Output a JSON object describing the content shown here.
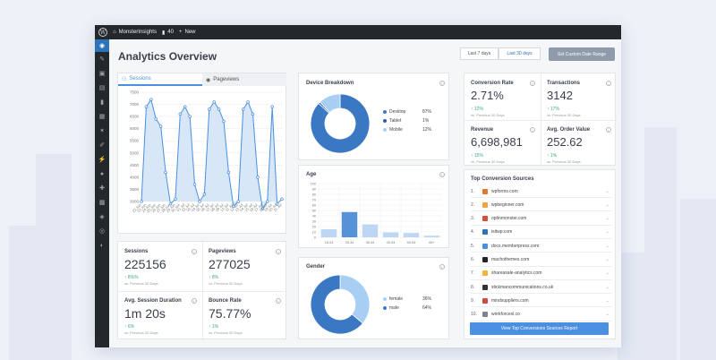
{
  "wp_bar": {
    "site_name": "MonsterInsights",
    "comments_count": "40",
    "new_label": "New"
  },
  "page": {
    "title": "Analytics Overview",
    "range_buttons": [
      "Last 7 days",
      "Last 30 days"
    ],
    "active_range": "Last 30 days",
    "custom_range_label": "Set Custom Date Range"
  },
  "traffic": {
    "tabs": [
      "Sessions",
      "Pageviews"
    ],
    "active_tab": "Sessions",
    "accent": "#4a8fe0"
  },
  "chart_data": [
    {
      "type": "area",
      "title": "",
      "categories": [
        "22 Jun",
        "23 Jun",
        "24 Jun",
        "25 Jun",
        "26 Jun",
        "27 Jun",
        "28 Jun",
        "29 Jun",
        "30 Jun",
        "01 Jul",
        "02 Jul",
        "03 Jul",
        "04 Jul",
        "05 Jul",
        "06 Jul",
        "07 Jul",
        "08 Jul",
        "09 Jul",
        "10 Jul",
        "11 Jul",
        "12 Jul",
        "13 Jul",
        "14 Jul",
        "15 Jul",
        "16 Jul",
        "17 Jul",
        "18 Jul",
        "19 Jul",
        "20 Jul",
        "21 Jul"
      ],
      "series": [
        {
          "values": [
            3000,
            6900,
            7200,
            6400,
            6100,
            4200,
            2900,
            3100,
            6600,
            6900,
            6500,
            3700,
            3000,
            3300,
            6800,
            7100,
            6800,
            6300,
            4200,
            2800,
            3000,
            6800,
            7100,
            6600,
            4000,
            2700,
            3000,
            6900,
            2900,
            3100
          ]
        }
      ],
      "yticks": [
        "3000",
        "3500",
        "4000",
        "4500",
        "5000",
        "5500",
        "6000",
        "6500",
        "7000",
        "7500"
      ],
      "ylim": [
        3000,
        7500
      ]
    },
    {
      "type": "pie",
      "title": "Device Breakdown",
      "categories": [
        "Desktop",
        "Tablet",
        "Mobile"
      ],
      "values": [
        87,
        1,
        12
      ],
      "labels": [
        "87%",
        "1%",
        "12%"
      ],
      "colors": [
        "#3a78c4",
        "#2a5ea0",
        "#a9cef4"
      ]
    },
    {
      "type": "bar",
      "title": "Age",
      "categories": [
        "18-24",
        "25-34",
        "35-44",
        "45-54",
        "55-64",
        "65+"
      ],
      "values": [
        15,
        47,
        24,
        9,
        8,
        3
      ],
      "yticks": [
        "0",
        "10",
        "20",
        "30",
        "40",
        "50",
        "60",
        "70",
        "80",
        "90",
        "100"
      ],
      "ylim": [
        0,
        100
      ]
    },
    {
      "type": "pie",
      "title": "Gender",
      "categories": [
        "female",
        "male"
      ],
      "values": [
        36,
        64
      ],
      "labels": [
        "36%",
        "64%"
      ],
      "colors": [
        "#a9cef4",
        "#3a78c4"
      ]
    }
  ],
  "kpis": [
    {
      "label": "Sessions",
      "value": "225156",
      "delta": "8%%",
      "sub": "vs. Previous 30 Days"
    },
    {
      "label": "Pageviews",
      "value": "277025",
      "delta": "8%",
      "sub": "vs. Previous 30 Days"
    },
    {
      "label": "Avg. Session Duration",
      "value": "1m 20s",
      "delta": "6%",
      "sub": "vs. Previous 30 Days"
    },
    {
      "label": "Bounce Rate",
      "value": "75.77%",
      "delta": "1%",
      "sub": "vs. Previous 30 Days"
    }
  ],
  "ecommerce": [
    {
      "label": "Conversion Rate",
      "value": "2.71%",
      "delta": "12%",
      "sub": "vs. Previous 30 Days"
    },
    {
      "label": "Transactions",
      "value": "3142",
      "delta": "17%",
      "sub": "vs. Previous 30 Days"
    },
    {
      "label": "Revenue",
      "value": "6,698,981",
      "delta": "15%",
      "sub": "vs. Previous 30 Days"
    },
    {
      "label": "Avg. Order Value",
      "value": "252.62",
      "delta": "1%",
      "sub": "vs. Previous 30 Days"
    }
  ],
  "sources": {
    "title": "Top Conversion Sources",
    "items": [
      {
        "num": "1.",
        "name": "wpforms.com",
        "color": "#e27730"
      },
      {
        "num": "2.",
        "name": "wpbeginner.com",
        "color": "#f0a23b"
      },
      {
        "num": "3.",
        "name": "optinmonster.com",
        "color": "#d84a3c"
      },
      {
        "num": "4.",
        "name": "isitwp.com",
        "color": "#2e73b8"
      },
      {
        "num": "5.",
        "name": "docs.memberpress.com",
        "color": "#4a8fe0"
      },
      {
        "num": "6.",
        "name": "machothemes.com",
        "color": "#222222"
      },
      {
        "num": "7.",
        "name": "shareasale-analytics.com",
        "color": "#f2b33d"
      },
      {
        "num": "8.",
        "name": "stickmancommunications.co.uk",
        "color": "#333333"
      },
      {
        "num": "9.",
        "name": "mindsuppliers.com",
        "color": "#cf4b3f"
      },
      {
        "num": "10.",
        "name": "workforcexl.co",
        "color": "#7a8591"
      }
    ],
    "button_label": "View Top Conversions Sources Report"
  }
}
